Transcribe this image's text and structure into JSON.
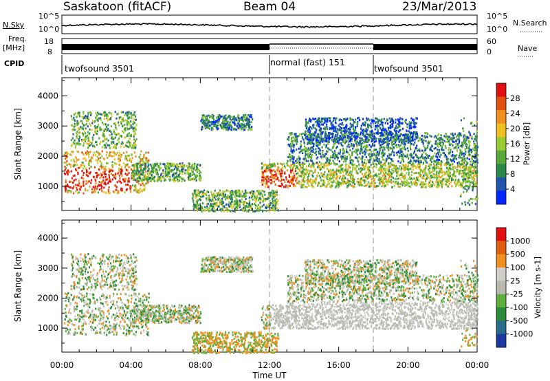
{
  "header": {
    "station": "Saskatoon (fitACF)",
    "beam": "Beam 04",
    "date": "23/Mar/2013"
  },
  "strip_labels": {
    "nsky": "N.Sky",
    "nsky_top": "10^5",
    "nsky_bottom": "10^0",
    "nsky_right_top": "10^5",
    "nsky_right_bottom": "10^0",
    "nsearch": "N.Search",
    "freq": "Freq.",
    "freq_unit": "[MHz]",
    "freq_top": "18",
    "freq_bottom": "8",
    "nave_top": "60",
    "nave_bottom": "0",
    "nave": "Nave",
    "cpid": "CPID"
  },
  "modes": [
    {
      "label": "twofsound 3501",
      "start_hour": 0,
      "end_hour": 12
    },
    {
      "label": "normal (fast) 151",
      "start_hour": 12,
      "end_hour": 18
    },
    {
      "label": "twofsound 3501",
      "start_hour": 18,
      "end_hour": 24
    }
  ],
  "chart_data": [
    {
      "type": "heatmap",
      "name": "power",
      "ylabel": "Slant Range [km]",
      "xlim": [
        0,
        24
      ],
      "ylim": [
        200,
        4600
      ],
      "yticks": [
        1000,
        2000,
        3000,
        4000
      ],
      "x_ticks_hours": [
        0,
        1,
        2,
        3,
        4,
        5,
        6,
        7,
        8,
        9,
        10,
        11,
        12,
        13,
        14,
        15,
        16,
        17,
        18,
        19,
        20,
        21,
        22,
        23,
        24
      ],
      "colorbar": {
        "label": "Power [dB]",
        "ticks": [
          "4",
          "8",
          "12",
          "16",
          "20",
          "24",
          "28"
        ],
        "colors": [
          "#0028ff",
          "#2255aa",
          "#2a8a4a",
          "#5aaa3a",
          "#99cc33",
          "#f0c020",
          "#f09020",
          "#e05010",
          "#e01010"
        ]
      },
      "scatter_regions": [
        {
          "t0": 0.1,
          "t1": 5.0,
          "r0": 800,
          "r1": 2200,
          "level": 5
        },
        {
          "t0": 0.5,
          "t1": 4.3,
          "r0": 2300,
          "r1": 3500,
          "level": 3
        },
        {
          "t0": 4.0,
          "t1": 8.0,
          "r0": 1200,
          "r1": 1800,
          "level": 3
        },
        {
          "t0": 7.5,
          "t1": 12.5,
          "r0": 200,
          "r1": 900,
          "level": 3
        },
        {
          "t0": 8.0,
          "t1": 11.0,
          "r0": 2900,
          "r1": 3400,
          "level": 2
        },
        {
          "t0": 11.5,
          "t1": 24.0,
          "r0": 1000,
          "r1": 1800,
          "level": 4
        },
        {
          "t0": 13.0,
          "t1": 24.0,
          "r0": 1800,
          "r1": 2800,
          "level": 2
        },
        {
          "t0": 14.0,
          "t1": 20.5,
          "r0": 2500,
          "r1": 3300,
          "level": 1
        },
        {
          "t0": 23.0,
          "t1": 24.0,
          "r0": 400,
          "r1": 3300,
          "level": 3
        }
      ]
    },
    {
      "type": "heatmap",
      "name": "velocity",
      "ylabel": "Slant Range [km]",
      "xlabel": "Time UT",
      "xlim": [
        0,
        24
      ],
      "ylim": [
        200,
        4600
      ],
      "yticks": [
        1000,
        2000,
        3000,
        4000
      ],
      "x_tick_labels": [
        "00:00",
        "04:00",
        "08:00",
        "12:00",
        "16:00",
        "20:00",
        "00:00"
      ],
      "x_tick_label_hours": [
        0,
        4,
        8,
        12,
        16,
        20,
        24
      ],
      "colorbar": {
        "label": "Velocity [m s-1]",
        "ticks": [
          "1000",
          "500",
          "100",
          "25",
          "-25",
          "-100",
          "-500",
          "-1000"
        ],
        "colors": [
          "#1a3aa0",
          "#2a6a8a",
          "#2a8a3a",
          "#60b040",
          "#b8bab0",
          "#d0d0c8",
          "#f09020",
          "#e06010",
          "#e01010"
        ]
      }
    }
  ]
}
